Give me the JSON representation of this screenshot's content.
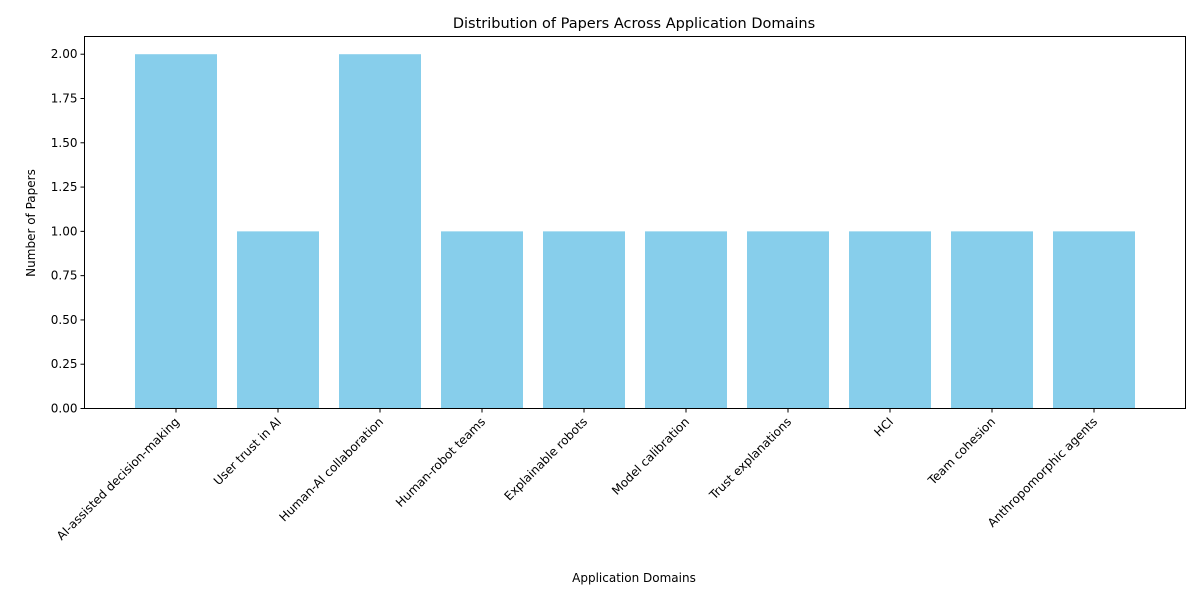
{
  "chart_data": {
    "type": "bar",
    "title": "Distribution of Papers Across Application Domains",
    "xlabel": "Application Domains",
    "ylabel": "Number of Papers",
    "categories": [
      "AI-assisted decision-making",
      "User trust in AI",
      "Human-AI collaboration",
      "Human-robot teams",
      "Explainable robots",
      "Model calibration",
      "Trust explanations",
      "HCI",
      "Team cohesion",
      "Anthropomorphic agents"
    ],
    "values": [
      2,
      1,
      2,
      1,
      1,
      1,
      1,
      1,
      1,
      1
    ],
    "yticks": [
      "0.00",
      "0.25",
      "0.50",
      "0.75",
      "1.00",
      "1.25",
      "1.50",
      "1.75",
      "2.00"
    ],
    "ylim": [
      0,
      2.1
    ],
    "bar_color": "#87CEEB",
    "grid": false,
    "legend": "none"
  }
}
